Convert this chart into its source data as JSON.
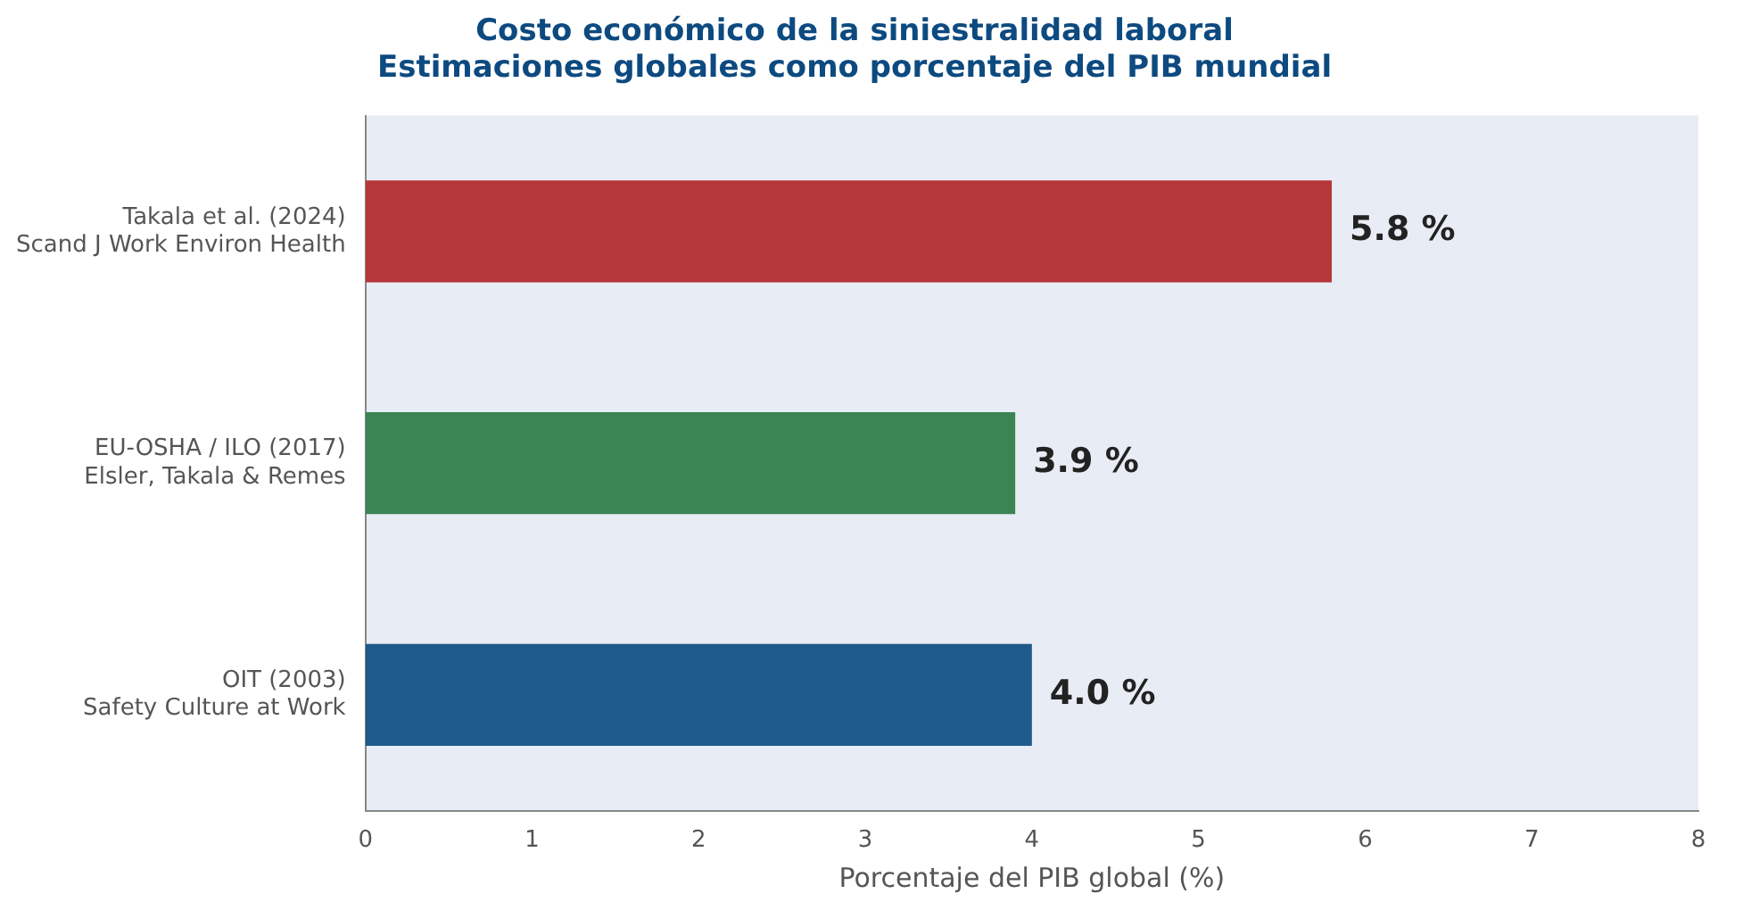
{
  "chart_data": {
    "type": "bar",
    "orientation": "horizontal",
    "title": "Costo económico de la siniestralidad laboral\nEstimaciones globales como porcentaje del PIB mundial",
    "xlabel": "Porcentaje del PIB global (%)",
    "categories": [
      "Takala et al. (2024)\nScand J Work Environ Health",
      "EU-OSHA / ILO (2017)\nElsler, Takala & Remes",
      "OIT (2003)\nSafety Culture at Work"
    ],
    "values": [
      5.8,
      3.9,
      4.0
    ],
    "colors": [
      "#b5373a",
      "#3a8553",
      "#1f5a8c"
    ],
    "value_labels": [
      "5.8 %",
      "3.9 %",
      "4.0 %"
    ],
    "xlim": [
      0,
      8
    ],
    "xticks": [
      0,
      1,
      2,
      3,
      4,
      5,
      6,
      7,
      8
    ],
    "grid": false,
    "legend": false
  }
}
